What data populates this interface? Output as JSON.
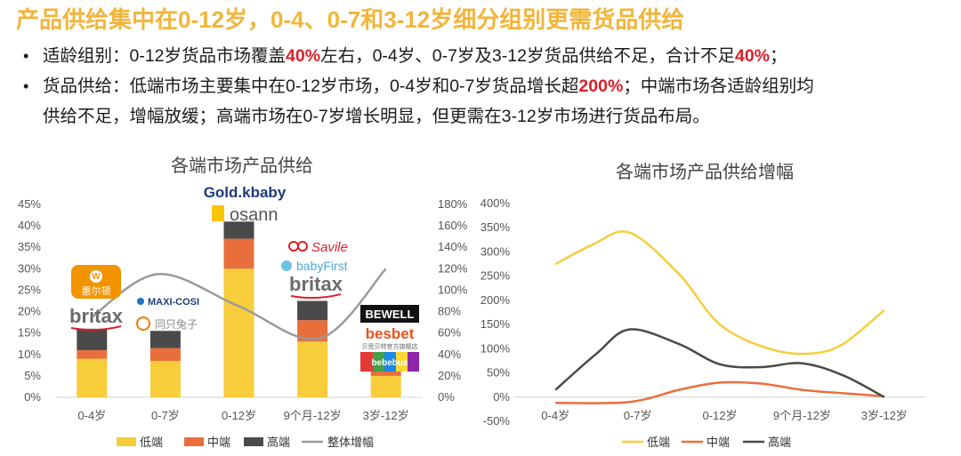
{
  "title": "产品供给集中在0-12岁，0-4、0-7和3-12岁细分组别更需货品供给",
  "bullets": [
    {
      "pre": "适龄组别：0-12岁货品市场覆盖",
      "hl1": "40%",
      "mid": "左右，0-4岁、0-7岁及3-12岁货品供给不足，合计不足",
      "hl2": "40%",
      "post": "；"
    },
    {
      "pre": "货品供给：低端市场主要集中在0-12岁市场，0-4岁和0-7岁货品增长超",
      "hl1": "200%",
      "mid": "；中端市场各适龄组别均",
      "line2": "供给不足，增幅放缓；高端市场在0-7岁增长明显，但更需在3-12岁市场进行货品布局。"
    }
  ],
  "logos": {
    "wfm": "惠尔顿",
    "britax": "britax",
    "maxicosi": "MAXI-COSI",
    "tutu": "同只兔子",
    "goldkbaby": "Gold.kbaby",
    "osann": "osann",
    "savile": "Savile",
    "babyfirst": "babyFirst",
    "bewell": "BEWELL",
    "besbet": "besbet",
    "besbet_sub": "贝思贝特官方旗舰店",
    "bebebus": "bebebus"
  },
  "colors": {
    "low": "#f7cd3b",
    "mid": "#e86f3c",
    "high": "#4a4a4a",
    "total": "#9a9a9a",
    "accent": "#d9202a",
    "title": "#f2b53a"
  },
  "chart_data": [
    {
      "type": "bar",
      "title": "各端市场产品供给",
      "categories": [
        "0-4岁",
        "0-7岁",
        "0-12岁",
        "9个月-12岁",
        "3岁-12岁"
      ],
      "stacked": true,
      "series": [
        {
          "name": "低端",
          "values": [
            9.0,
            8.5,
            30.0,
            13.0,
            5.0
          ]
        },
        {
          "name": "中端",
          "values": [
            2.0,
            3.0,
            7.0,
            5.0,
            1.5
          ]
        },
        {
          "name": "高端",
          "values": [
            5.0,
            4.0,
            4.0,
            4.5,
            2.5
          ]
        }
      ],
      "line_series": {
        "name": "整体增幅",
        "axis": "right",
        "x": [
          0,
          0.9,
          2.0,
          3.1,
          4.0
        ],
        "values": [
          75,
          115,
          85,
          55,
          120
        ]
      },
      "yticks_left": [
        "0%",
        "5%",
        "10%",
        "15%",
        "20%",
        "25%",
        "30%",
        "35%",
        "40%",
        "45%"
      ],
      "yticks_right": [
        "0%",
        "20%",
        "40%",
        "60%",
        "80%",
        "100%",
        "120%",
        "140%",
        "160%",
        "180%"
      ],
      "ylim_left": [
        0,
        45
      ],
      "ylim_right": [
        0,
        180
      ],
      "legend_position": "bottom"
    },
    {
      "type": "line",
      "title": "各端市场产品供给增幅",
      "categories": [
        "0-4岁",
        "0-7岁",
        "0-12岁",
        "9个月-12岁",
        "3岁-12岁"
      ],
      "series": [
        {
          "name": "低端",
          "x": [
            0,
            0.45,
            0.9,
            1.5,
            2.0,
            2.6,
            3.1,
            3.5,
            4.0
          ],
          "values": [
            275,
            315,
            340,
            255,
            150,
            100,
            90,
            110,
            180
          ]
        },
        {
          "name": "中端",
          "x": [
            0,
            0.9,
            1.5,
            2.0,
            2.5,
            3.0,
            3.5,
            4.0
          ],
          "values": [
            -12,
            -10,
            15,
            30,
            28,
            15,
            8,
            2
          ]
        },
        {
          "name": "高端",
          "x": [
            0,
            0.5,
            0.9,
            1.5,
            2.0,
            2.5,
            3.0,
            3.5,
            4.0
          ],
          "values": [
            15,
            90,
            140,
            110,
            68,
            62,
            70,
            45,
            0
          ]
        }
      ],
      "yticks": [
        "-50%",
        "0%",
        "50%",
        "100%",
        "150%",
        "200%",
        "250%",
        "300%",
        "350%",
        "400%"
      ],
      "ylim": [
        -50,
        400
      ],
      "legend_position": "bottom"
    }
  ]
}
